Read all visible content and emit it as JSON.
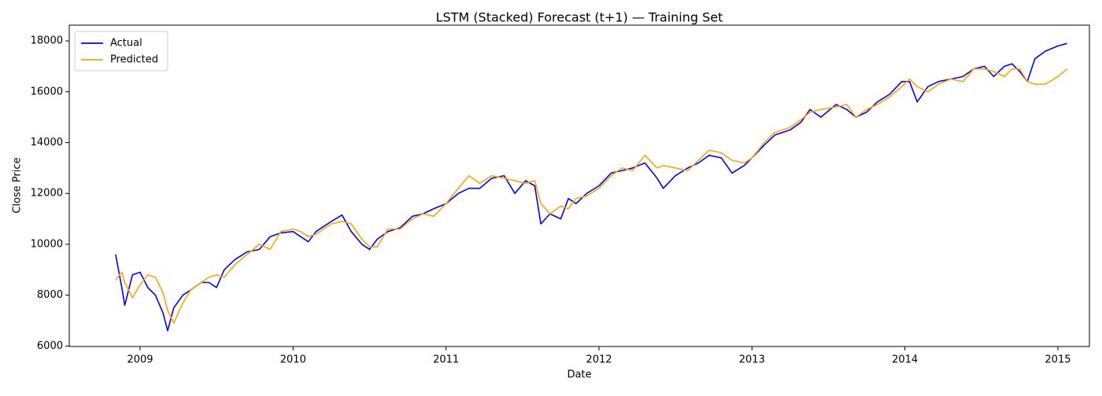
{
  "chart_data": {
    "type": "line",
    "title": "LSTM (Stacked) Forecast (t+1) — Training Set",
    "xlabel": "Date",
    "ylabel": "Close Price",
    "x": [
      2008.84,
      2008.88,
      2008.9,
      2008.95,
      2009.0,
      2009.05,
      2009.1,
      2009.15,
      2009.18,
      2009.22,
      2009.28,
      2009.33,
      2009.4,
      2009.45,
      2009.5,
      2009.55,
      2009.62,
      2009.7,
      2009.78,
      2009.85,
      2009.92,
      2010.0,
      2010.05,
      2010.1,
      2010.15,
      2010.25,
      2010.32,
      2010.38,
      2010.45,
      2010.5,
      2010.55,
      2010.62,
      2010.7,
      2010.78,
      2010.85,
      2010.92,
      2011.0,
      2011.08,
      2011.15,
      2011.22,
      2011.3,
      2011.38,
      2011.45,
      2011.52,
      2011.58,
      2011.62,
      2011.68,
      2011.75,
      2011.8,
      2011.85,
      2011.92,
      2012.0,
      2012.08,
      2012.15,
      2012.22,
      2012.3,
      2012.38,
      2012.42,
      2012.5,
      2012.58,
      2012.65,
      2012.72,
      2012.8,
      2012.87,
      2012.95,
      2013.0,
      2013.08,
      2013.15,
      2013.25,
      2013.32,
      2013.38,
      2013.45,
      2013.55,
      2013.62,
      2013.68,
      2013.75,
      2013.82,
      2013.9,
      2013.98,
      2014.03,
      2014.08,
      2014.15,
      2014.22,
      2014.3,
      2014.38,
      2014.45,
      2014.52,
      2014.58,
      2014.65,
      2014.7,
      2014.75,
      2014.8,
      2014.85,
      2014.92,
      2015.0,
      2015.06
    ],
    "series": [
      {
        "name": "Actual",
        "color": "#0000ff",
        "values": [
          9600,
          8300,
          7600,
          8800,
          8900,
          8300,
          8000,
          7300,
          6600,
          7500,
          8000,
          8200,
          8500,
          8500,
          8300,
          9000,
          9400,
          9700,
          9800,
          10300,
          10450,
          10500,
          10300,
          10100,
          10500,
          10900,
          11150,
          10500,
          10000,
          9800,
          10200,
          10500,
          10650,
          11100,
          11200,
          11400,
          11600,
          12000,
          12200,
          12200,
          12600,
          12700,
          12000,
          12500,
          12300,
          10800,
          11200,
          11000,
          11800,
          11600,
          12000,
          12300,
          12800,
          12900,
          13000,
          13200,
          12600,
          12200,
          12700,
          13000,
          13200,
          13500,
          13400,
          12800,
          13100,
          13400,
          13900,
          14300,
          14500,
          14800,
          15300,
          15000,
          15500,
          15300,
          15000,
          15200,
          15600,
          15900,
          16400,
          16400,
          15600,
          16200,
          16400,
          16500,
          16600,
          16900,
          17000,
          16600,
          17000,
          17100,
          16800,
          16400,
          17300,
          17600,
          17800,
          17900
        ]
      },
      {
        "name": "Predicted",
        "color": "#ffa500",
        "values": [
          8600,
          8900,
          8500,
          7900,
          8400,
          8800,
          8700,
          8100,
          7400,
          6900,
          7700,
          8200,
          8500,
          8700,
          8800,
          8700,
          9200,
          9600,
          10000,
          9800,
          10500,
          10600,
          10500,
          10300,
          10400,
          10800,
          10900,
          10800,
          10200,
          9900,
          9900,
          10600,
          10600,
          11000,
          11200,
          11100,
          11600,
          12200,
          12700,
          12400,
          12700,
          12600,
          12500,
          12400,
          12500,
          11600,
          11200,
          11500,
          11400,
          11800,
          11900,
          12200,
          12700,
          13000,
          12900,
          13500,
          13000,
          13100,
          13000,
          12900,
          13300,
          13700,
          13600,
          13300,
          13200,
          13400,
          14000,
          14400,
          14600,
          14900,
          15200,
          15300,
          15400,
          15500,
          15000,
          15300,
          15500,
          15800,
          16200,
          16500,
          16200,
          16000,
          16300,
          16500,
          16400,
          16900,
          16900,
          16800,
          16600,
          16900,
          16900,
          16400,
          16300,
          16300,
          16600,
          16900
        ]
      }
    ],
    "xlim": [
      2008.537,
      2015.206
    ],
    "xticks": [
      2009,
      2010,
      2011,
      2012,
      2013,
      2014,
      2015
    ],
    "ylim": [
      5980,
      18620
    ],
    "yticks": [
      6000,
      8000,
      10000,
      12000,
      14000,
      16000,
      18000
    ],
    "legend": "upper left",
    "grid": false
  }
}
